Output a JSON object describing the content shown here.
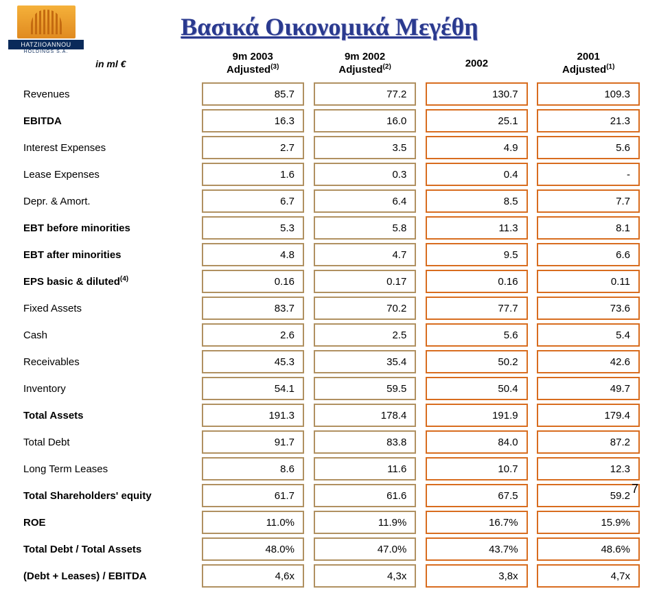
{
  "logo": {
    "name": "HATZIIOANNOU",
    "sub": "HOLDINGS  S.A."
  },
  "title": "Βασικά Οικονομικά Μεγέθη",
  "unit_label": "in ml €",
  "columns": [
    {
      "line1": "9m 2003",
      "line2": "Adjusted",
      "sup": "(3)"
    },
    {
      "line1": "9m 2002",
      "line2": "Adjusted",
      "sup": "(2)"
    },
    {
      "line1": "2002",
      "line2": "",
      "sup": ""
    },
    {
      "line1": "2001",
      "line2": "Adjusted",
      "sup": "(1)"
    }
  ],
  "colors": {
    "c0": "#b09060",
    "c1": "#b09060",
    "c2": "#d86c1e",
    "c3": "#d86c1e"
  },
  "rows": [
    {
      "label": "Revenues",
      "bold": false,
      "vals": [
        "85.7",
        "77.2",
        "130.7",
        "109.3"
      ]
    },
    {
      "label": "EBITDA",
      "bold": true,
      "vals": [
        "16.3",
        "16.0",
        "25.1",
        "21.3"
      ]
    },
    {
      "label": "Interest Expenses",
      "bold": false,
      "vals": [
        "2.7",
        "3.5",
        "4.9",
        "5.6"
      ]
    },
    {
      "label": "Lease Expenses",
      "bold": false,
      "vals": [
        "1.6",
        "0.3",
        "0.4",
        "-"
      ]
    },
    {
      "label": "Depr. & Amort.",
      "bold": false,
      "vals": [
        "6.7",
        "6.4",
        "8.5",
        "7.7"
      ]
    },
    {
      "label": "EBT before minorities",
      "bold": true,
      "vals": [
        "5.3",
        "5.8",
        "11.3",
        "8.1"
      ]
    },
    {
      "label": "EBT after minorities",
      "bold": true,
      "vals": [
        "4.8",
        "4.7",
        "9.5",
        "6.6"
      ]
    },
    {
      "label": "EPS basic & diluted",
      "bold": true,
      "sup": "(4)",
      "vals": [
        "0.16",
        "0.17",
        "0.16",
        "0.11"
      ]
    },
    {
      "label": "Fixed Assets",
      "bold": false,
      "vals": [
        "83.7",
        "70.2",
        "77.7",
        "73.6"
      ]
    },
    {
      "label": "Cash",
      "bold": false,
      "vals": [
        "2.6",
        "2.5",
        "5.6",
        "5.4"
      ]
    },
    {
      "label": "Receivables",
      "bold": false,
      "vals": [
        "45.3",
        "35.4",
        "50.2",
        "42.6"
      ]
    },
    {
      "label": "Inventory",
      "bold": false,
      "vals": [
        "54.1",
        "59.5",
        "50.4",
        "49.7"
      ]
    },
    {
      "label": "Total Assets",
      "bold": true,
      "vals": [
        "191.3",
        "178.4",
        "191.9",
        "179.4"
      ]
    },
    {
      "label": "Total Debt",
      "bold": false,
      "vals": [
        "91.7",
        "83.8",
        "84.0",
        "87.2"
      ]
    },
    {
      "label": "Long Term Leases",
      "bold": false,
      "vals": [
        "8.6",
        "11.6",
        "10.7",
        "12.3"
      ]
    },
    {
      "label": "Total Shareholders' equity",
      "bold": true,
      "vals": [
        "61.7",
        "61.6",
        "67.5",
        "59.2"
      ]
    },
    {
      "label": "ROE",
      "bold": true,
      "vals": [
        "11.0%",
        "11.9%",
        "16.7%",
        "15.9%"
      ]
    },
    {
      "label": "Total Debt / Total Assets",
      "bold": true,
      "vals": [
        "48.0%",
        "47.0%",
        "43.7%",
        "48.6%"
      ]
    },
    {
      "label": "(Debt + Leases) / EBITDA",
      "bold": true,
      "vals": [
        "4,6x",
        "4,3x",
        "3,8x",
        "4,7x"
      ]
    }
  ],
  "page_number": "7",
  "style": {
    "title_color": "#2a3a8f",
    "title_fontsize": 36,
    "body_fontsize": 15,
    "cell_border_width": 2
  }
}
